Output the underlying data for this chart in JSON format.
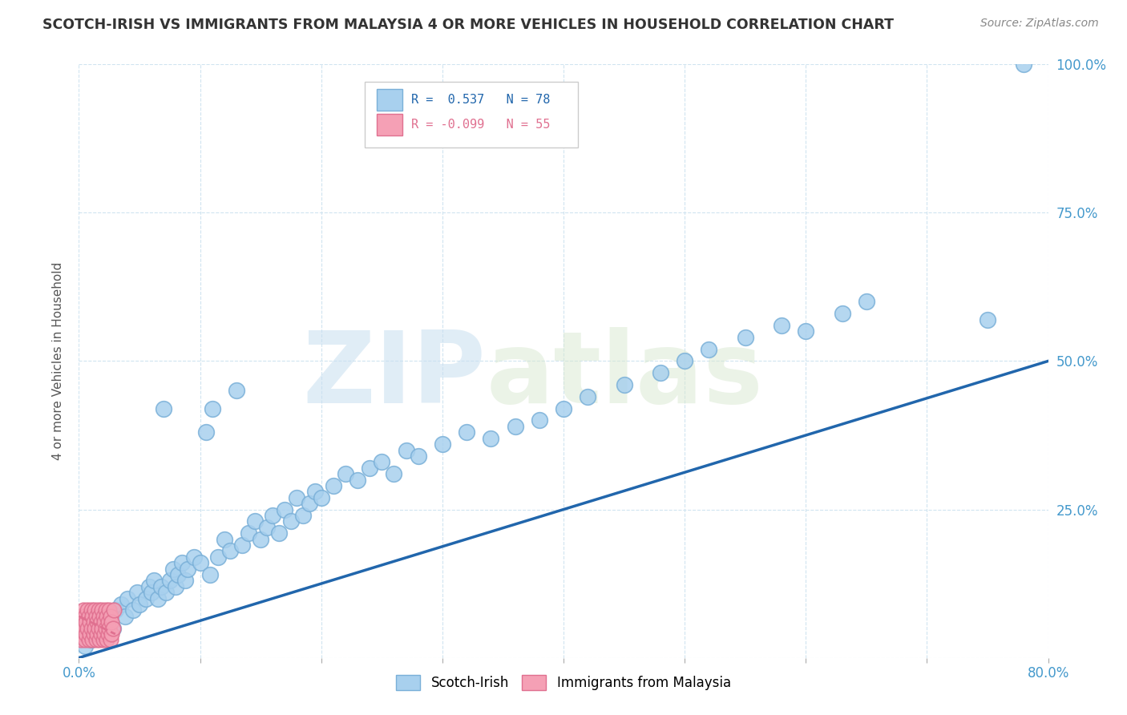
{
  "title": "SCOTCH-IRISH VS IMMIGRANTS FROM MALAYSIA 4 OR MORE VEHICLES IN HOUSEHOLD CORRELATION CHART",
  "source": "Source: ZipAtlas.com",
  "ylabel": "4 or more Vehicles in Household",
  "xlim": [
    0.0,
    0.8
  ],
  "ylim": [
    0.0,
    1.0
  ],
  "xticks": [
    0.0,
    0.1,
    0.2,
    0.3,
    0.4,
    0.5,
    0.6,
    0.7,
    0.8
  ],
  "yticks": [
    0.0,
    0.25,
    0.5,
    0.75,
    1.0
  ],
  "legend_r1": "R =  0.537",
  "legend_n1": "N = 78",
  "legend_r2": "R = -0.099",
  "legend_n2": "N = 55",
  "watermark_zip": "ZIP",
  "watermark_atlas": "atlas",
  "blue_scatter_color": "#a8d0ee",
  "blue_edge_color": "#7ab0d8",
  "pink_scatter_color": "#f5a0b5",
  "pink_edge_color": "#e07090",
  "blue_line_color": "#2166ac",
  "pink_line_color": "#e07090",
  "tick_color": "#4499cc",
  "title_color": "#333333",
  "source_color": "#888888",
  "grid_color": "#d0e4f0",
  "scotch_irish_x": [
    0.005,
    0.01,
    0.015,
    0.018,
    0.02,
    0.025,
    0.028,
    0.03,
    0.035,
    0.038,
    0.04,
    0.045,
    0.048,
    0.05,
    0.055,
    0.058,
    0.06,
    0.062,
    0.065,
    0.068,
    0.07,
    0.072,
    0.075,
    0.078,
    0.08,
    0.082,
    0.085,
    0.088,
    0.09,
    0.095,
    0.1,
    0.105,
    0.108,
    0.11,
    0.115,
    0.12,
    0.125,
    0.13,
    0.135,
    0.14,
    0.145,
    0.15,
    0.155,
    0.16,
    0.165,
    0.17,
    0.175,
    0.18,
    0.185,
    0.19,
    0.195,
    0.2,
    0.21,
    0.22,
    0.23,
    0.24,
    0.25,
    0.26,
    0.27,
    0.28,
    0.3,
    0.32,
    0.34,
    0.36,
    0.38,
    0.4,
    0.42,
    0.45,
    0.48,
    0.5,
    0.52,
    0.55,
    0.58,
    0.6,
    0.63,
    0.65,
    0.75,
    0.78
  ],
  "scotch_irish_y": [
    0.02,
    0.03,
    0.04,
    0.05,
    0.06,
    0.07,
    0.05,
    0.08,
    0.09,
    0.07,
    0.1,
    0.08,
    0.11,
    0.09,
    0.1,
    0.12,
    0.11,
    0.13,
    0.1,
    0.12,
    0.14,
    0.11,
    0.13,
    0.15,
    0.12,
    0.14,
    0.16,
    0.13,
    0.15,
    0.17,
    0.16,
    0.18,
    0.14,
    0.19,
    0.17,
    0.2,
    0.18,
    0.22,
    0.19,
    0.21,
    0.23,
    0.2,
    0.22,
    0.24,
    0.21,
    0.25,
    0.23,
    0.27,
    0.24,
    0.26,
    0.28,
    0.27,
    0.29,
    0.31,
    0.3,
    0.32,
    0.33,
    0.31,
    0.35,
    0.34,
    0.36,
    0.38,
    0.37,
    0.39,
    0.4,
    0.42,
    0.44,
    0.46,
    0.48,
    0.5,
    0.52,
    0.54,
    0.56,
    0.55,
    0.58,
    0.6,
    0.57,
    1.0
  ],
  "scotch_irish_y_outliers": [
    0.02,
    0.03,
    0.04,
    0.05,
    0.06,
    0.07,
    0.05,
    0.08,
    0.09,
    0.07,
    0.1,
    0.08,
    0.11,
    0.09,
    0.1,
    0.12,
    0.11,
    0.13,
    0.1,
    0.12,
    0.42,
    0.11,
    0.13,
    0.15,
    0.12,
    0.14,
    0.16,
    0.13,
    0.15,
    0.17,
    0.16,
    0.38,
    0.14,
    0.42,
    0.17,
    0.2,
    0.18,
    0.45,
    0.19,
    0.21,
    0.23,
    0.2,
    0.22,
    0.24,
    0.21,
    0.25,
    0.23,
    0.27,
    0.24,
    0.26,
    0.28,
    0.27,
    0.29,
    0.31,
    0.3,
    0.32,
    0.33,
    0.31,
    0.35,
    0.34,
    0.36,
    0.38,
    0.37,
    0.39,
    0.4,
    0.42,
    0.44,
    0.46,
    0.48,
    0.5,
    0.52,
    0.54,
    0.56,
    0.55,
    0.58,
    0.6,
    0.57,
    1.0
  ],
  "malaysia_x": [
    0.001,
    0.002,
    0.002,
    0.003,
    0.003,
    0.004,
    0.004,
    0.005,
    0.005,
    0.006,
    0.006,
    0.007,
    0.007,
    0.008,
    0.008,
    0.009,
    0.009,
    0.01,
    0.01,
    0.011,
    0.011,
    0.012,
    0.012,
    0.013,
    0.013,
    0.014,
    0.014,
    0.015,
    0.015,
    0.016,
    0.016,
    0.017,
    0.017,
    0.018,
    0.018,
    0.019,
    0.019,
    0.02,
    0.02,
    0.021,
    0.021,
    0.022,
    0.022,
    0.023,
    0.023,
    0.024,
    0.024,
    0.025,
    0.025,
    0.026,
    0.026,
    0.027,
    0.027,
    0.028,
    0.029
  ],
  "malaysia_y": [
    0.05,
    0.03,
    0.07,
    0.04,
    0.06,
    0.05,
    0.08,
    0.03,
    0.07,
    0.04,
    0.06,
    0.05,
    0.08,
    0.03,
    0.07,
    0.04,
    0.06,
    0.05,
    0.08,
    0.03,
    0.07,
    0.04,
    0.06,
    0.05,
    0.08,
    0.03,
    0.07,
    0.04,
    0.06,
    0.05,
    0.08,
    0.03,
    0.07,
    0.04,
    0.06,
    0.05,
    0.08,
    0.03,
    0.07,
    0.04,
    0.06,
    0.05,
    0.08,
    0.03,
    0.07,
    0.04,
    0.06,
    0.05,
    0.08,
    0.03,
    0.07,
    0.04,
    0.06,
    0.05,
    0.08
  ],
  "blue_trend_x": [
    0.0,
    0.8
  ],
  "blue_trend_y": [
    0.0,
    0.5
  ],
  "pink_trend_x": [
    0.0,
    0.03
  ],
  "pink_trend_y": [
    0.07,
    0.04
  ]
}
